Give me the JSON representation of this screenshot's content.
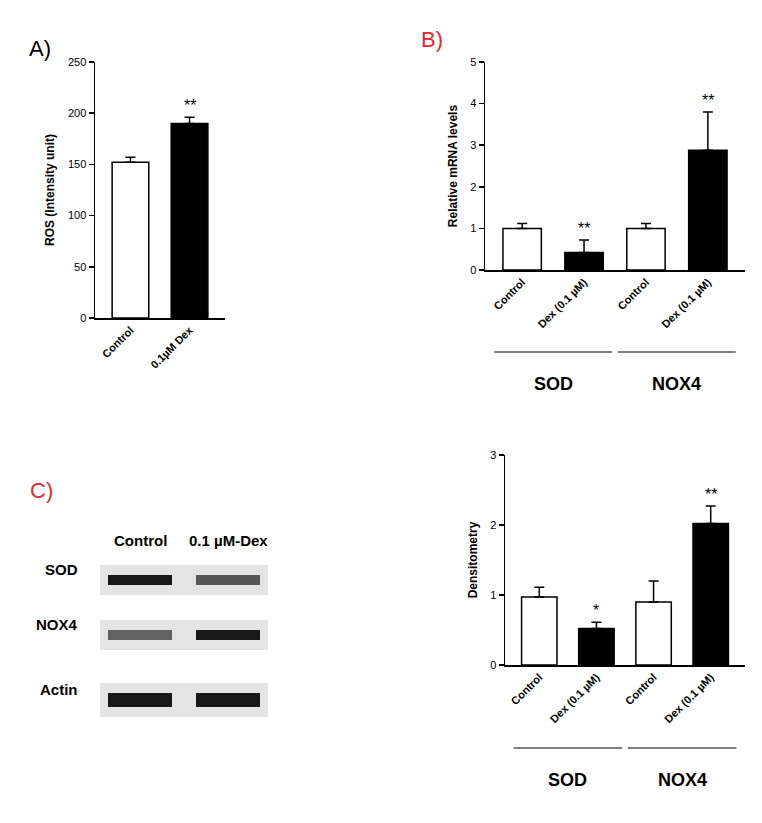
{
  "chart_data": [
    {
      "type": "bar",
      "annotation": {
        "text": "A)",
        "color": "#000000"
      },
      "ylabel": "ROS (Intensity unit)",
      "categories": [
        "Control",
        "0.1µM Dex"
      ],
      "values": [
        152,
        190
      ],
      "error": [
        5,
        6
      ],
      "significance": [
        null,
        "**"
      ],
      "colors": [
        "#ffffff",
        "#000000"
      ],
      "ylim": [
        0,
        250
      ],
      "yticks": [
        0,
        50,
        100,
        150,
        200,
        250
      ],
      "grid": false
    },
    {
      "type": "bar",
      "annotation": {
        "text": "B)",
        "color": "#e8262b"
      },
      "ylabel": "Relative mRNA levels",
      "categories": [
        "Control",
        "Dex (0.1 µM)",
        "Control",
        "Dex (0.1 µM)"
      ],
      "values": [
        1.0,
        0.42,
        1.0,
        2.88
      ],
      "error": [
        0.12,
        0.3,
        0.12,
        0.92
      ],
      "significance": [
        null,
        "**",
        null,
        "**"
      ],
      "colors": [
        "#ffffff",
        "#000000",
        "#ffffff",
        "#000000"
      ],
      "groups": [
        {
          "label": "SOD",
          "members": [
            0,
            1
          ]
        },
        {
          "label": "NOX4",
          "members": [
            2,
            3
          ]
        }
      ],
      "ylim": [
        0,
        5
      ],
      "yticks": [
        0,
        1,
        2,
        3,
        4,
        5
      ],
      "grid": false
    },
    {
      "type": "bar",
      "ylabel": "Densitometry",
      "categories": [
        "Control",
        "Dex (0.1 µM)",
        "Control",
        "Dex (0.1 µM)"
      ],
      "values": [
        0.97,
        0.52,
        0.9,
        2.02
      ],
      "error": [
        0.14,
        0.09,
        0.3,
        0.25
      ],
      "significance": [
        null,
        "*",
        null,
        "**"
      ],
      "colors": [
        "#ffffff",
        "#000000",
        "#ffffff",
        "#000000"
      ],
      "groups": [
        {
          "label": "SOD",
          "members": [
            0,
            1
          ]
        },
        {
          "label": "NOX4",
          "members": [
            2,
            3
          ]
        }
      ],
      "ylim": [
        0,
        3
      ],
      "yticks": [
        0,
        1,
        2,
        3
      ],
      "grid": false
    }
  ],
  "blot": {
    "annotation": {
      "text": "C)",
      "color": "#e8262b"
    },
    "lanes": [
      "Control",
      "0.1 µM-Dex"
    ],
    "rows": [
      "SOD",
      "NOX4",
      "Actin"
    ]
  }
}
